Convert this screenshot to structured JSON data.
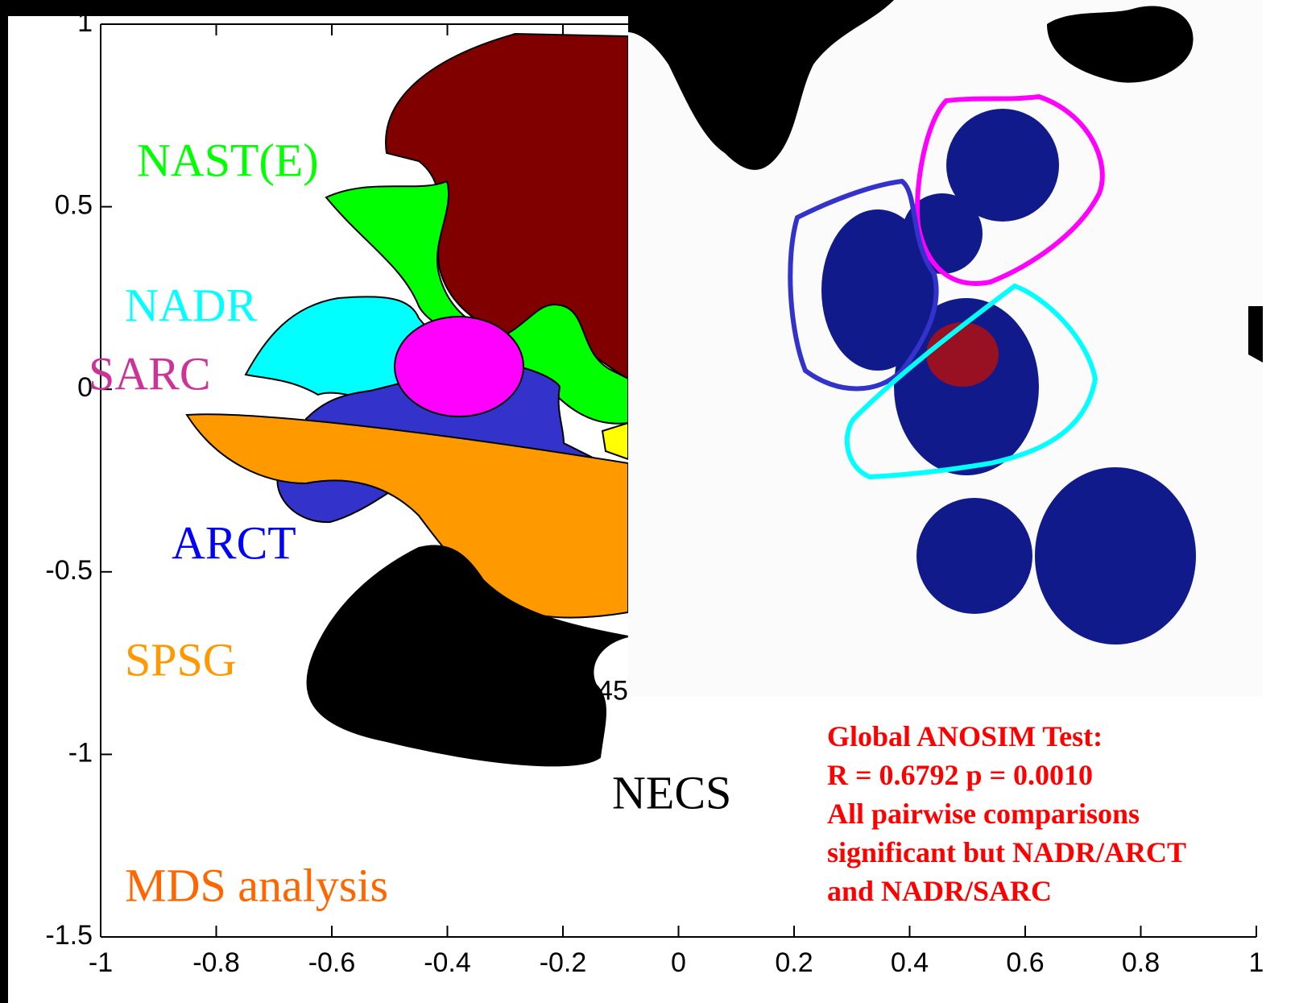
{
  "chart_data": {
    "type": "mds",
    "title": "MDS analysis",
    "title_color": "#ff6600",
    "xlim": [
      -1,
      1
    ],
    "ylim": [
      -1.5,
      1
    ],
    "xticks": [
      -1,
      -0.8,
      -0.6,
      -0.4,
      -0.2,
      0,
      0.2,
      0.4,
      0.6,
      0.8,
      1
    ],
    "yticks": [
      -1.5,
      -1,
      -0.5,
      0,
      0.5,
      1
    ],
    "groups": [
      {
        "name": "NAST(E)",
        "color": "#00ff00"
      },
      {
        "name": "NADR",
        "color": "#00ffff"
      },
      {
        "name": "SARC",
        "color": "#cc3399"
      },
      {
        "name": "ARCT",
        "color": "#0000ff"
      },
      {
        "name": "SPSG",
        "color": "#ff9900"
      },
      {
        "name": "NECS",
        "color": "#000000"
      }
    ],
    "point_labels": [
      {
        "label": "45",
        "x": -0.14,
        "y": -0.83,
        "color": "#ff9900"
      }
    ],
    "annotation": [
      "Global ANOSIM Test:",
      "R = 0.6792  p = 0.0010",
      "All pairwise comparisons",
      "significant but NADR/ARCT",
      "and NADR/SARC"
    ],
    "annotation_color": "#ff0000"
  }
}
